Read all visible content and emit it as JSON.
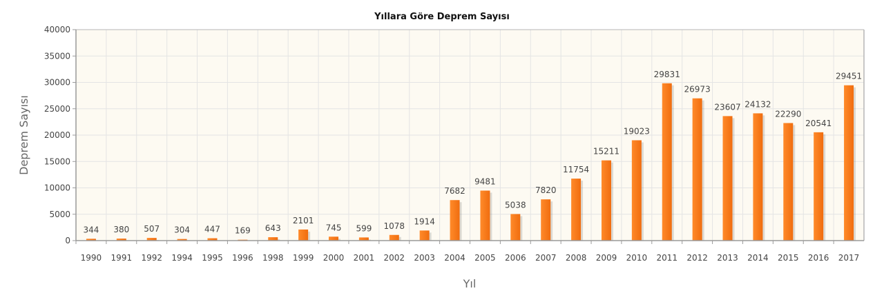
{
  "chart_data": {
    "type": "bar",
    "title": "Yıllara Göre Deprem Sayısı",
    "xlabel": "Yıl",
    "ylabel": "Deprem Sayısı",
    "ylim": [
      0,
      40000
    ],
    "yticks": [
      "0",
      "5000",
      "10000",
      "15000",
      "20000",
      "25000",
      "30000",
      "35000",
      "40000"
    ],
    "categories": [
      "1990",
      "1991",
      "1992",
      "1994",
      "1995",
      "1996",
      "1998",
      "1999",
      "2000",
      "2001",
      "2002",
      "2003",
      "2004",
      "2005",
      "2006",
      "2007",
      "2008",
      "2009",
      "2010",
      "2011",
      "2012",
      "2013",
      "2014",
      "2015",
      "2016",
      "2017"
    ],
    "values": [
      344,
      380,
      507,
      304,
      447,
      169,
      643,
      2101,
      745,
      599,
      1078,
      1914,
      7682,
      9481,
      5038,
      7820,
      11754,
      15211,
      19023,
      29831,
      26973,
      23607,
      24132,
      22290,
      20541,
      29451
    ],
    "grid": true,
    "legend": "none",
    "colors": {
      "bar": "#ff7f1e",
      "plot_bg": "#fdfaf2",
      "grid": "#e4e4e4",
      "axis": "#999999"
    }
  }
}
